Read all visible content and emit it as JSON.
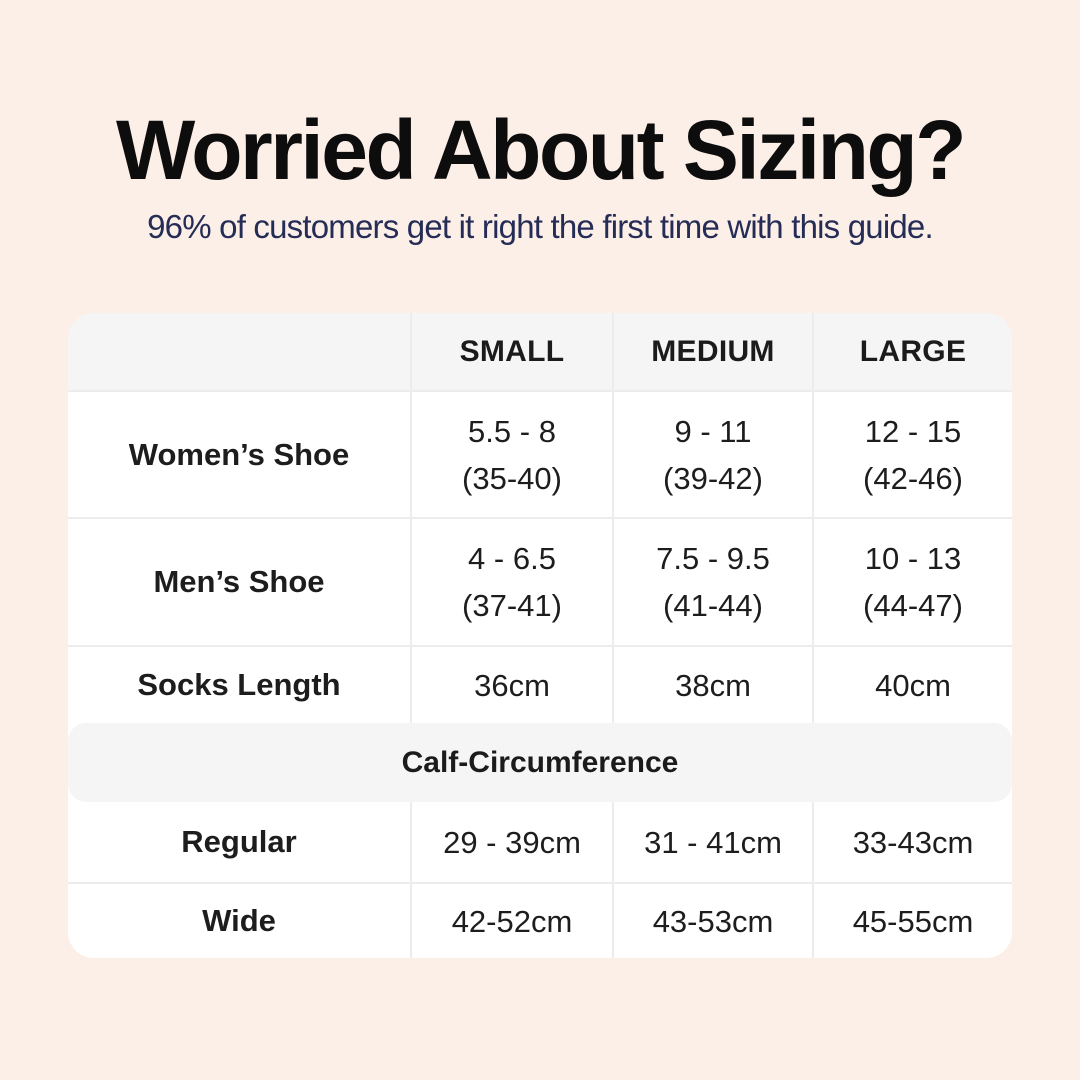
{
  "page": {
    "title": "Worried About Sizing?",
    "subtitle": "96% of customers get it right the first time with this guide."
  },
  "table": {
    "column_headers": [
      "SMALL",
      "MEDIUM",
      "LARGE"
    ],
    "rows": [
      {
        "label": "Women’s Shoe",
        "values": [
          [
            "5.5 - 8",
            "(35-40)"
          ],
          [
            "9 - 11",
            "(39-42)"
          ],
          [
            "12 - 15",
            "(42-46)"
          ]
        ]
      },
      {
        "label": "Men’s Shoe",
        "values": [
          [
            "4 - 6.5",
            "(37-41)"
          ],
          [
            "7.5 - 9.5",
            "(41-44)"
          ],
          [
            "10 - 13",
            "(44-47)"
          ]
        ]
      },
      {
        "label": "Socks Length",
        "values": [
          [
            "36cm"
          ],
          [
            "38cm"
          ],
          [
            "40cm"
          ]
        ]
      }
    ],
    "section_header": "Calf-Circumference",
    "section_rows": [
      {
        "label": "Regular",
        "values": [
          [
            "29 - 39cm"
          ],
          [
            "31 - 41cm"
          ],
          [
            "33-43cm"
          ]
        ]
      },
      {
        "label": "Wide",
        "values": [
          [
            "42-52cm"
          ],
          [
            "43-53cm"
          ],
          [
            "45-55cm"
          ]
        ]
      }
    ]
  },
  "colors": {
    "background": "#fcefe8",
    "card": "#ffffff",
    "header_band": "#f5f5f5",
    "divider": "#ececec",
    "title_text": "#0d0d0d",
    "subtitle_text": "#252c55",
    "table_text": "#1d1d1d"
  },
  "chart_data": {
    "type": "table",
    "title": "Worried About Sizing?",
    "subtitle": "96% of customers get it right the first time with this guide.",
    "columns": [
      "",
      "SMALL",
      "MEDIUM",
      "LARGE"
    ],
    "rows": [
      [
        "Women’s Shoe",
        "5.5 - 8 (35-40)",
        "9 - 11 (39-42)",
        "12 - 15 (42-46)"
      ],
      [
        "Men’s Shoe",
        "4 - 6.5 (37-41)",
        "7.5 - 9.5 (41-44)",
        "10 - 13 (44-47)"
      ],
      [
        "Socks Length",
        "36cm",
        "38cm",
        "40cm"
      ],
      [
        "Calf-Circumference",
        "",
        "",
        ""
      ],
      [
        "Regular",
        "29 - 39cm",
        "31 - 41cm",
        "33-43cm"
      ],
      [
        "Wide",
        "42-52cm",
        "43-53cm",
        "45-55cm"
      ]
    ],
    "layout_hints": {
      "section_header_row_index": 3,
      "section_header_spans_all_columns": true,
      "header_background": "#f5f5f5",
      "body_background": "#ffffff"
    }
  }
}
